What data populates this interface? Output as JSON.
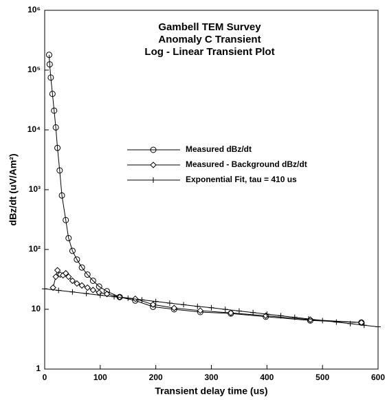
{
  "chart_data": {
    "type": "line",
    "title": [
      "Gambell TEM Survey",
      "Anomaly C Transient",
      "Log - Linear Transient Plot"
    ],
    "x_label": "Transient delay time (us)",
    "y_label": "dBz/dt (uV/Am²)",
    "xlim": [
      0,
      600
    ],
    "xticks": [
      0,
      100,
      200,
      300,
      400,
      500,
      600
    ],
    "ylim": [
      1,
      1000000
    ],
    "yticks": [
      1,
      10,
      {
        "value": 100,
        "label": "10²"
      },
      {
        "value": 1000,
        "label": "10³"
      },
      {
        "value": 10000,
        "label": "10⁴"
      },
      {
        "value": 100000,
        "label": "10⁵"
      },
      {
        "value": 1000000,
        "label": "10⁶"
      }
    ],
    "y_scale": "log",
    "series": [
      {
        "name": "Measured dBz/dt",
        "color": "#000000",
        "marker": "circle",
        "x": [
          8,
          9,
          11,
          14,
          17,
          20,
          23,
          27,
          31,
          38,
          43,
          50,
          58,
          67,
          77,
          87,
          98,
          112,
          135,
          163,
          195,
          233,
          280,
          335,
          398,
          478,
          570
        ],
        "values": [
          180000,
          125000,
          75000,
          40000,
          21000,
          11000,
          5000,
          2100,
          800,
          310,
          155,
          95,
          68,
          50,
          38,
          30,
          24,
          20,
          16,
          14,
          11,
          10,
          9,
          8.5,
          7.5,
          6.5,
          6
        ]
      },
      {
        "name": "Measured - Background dBz/dt",
        "color": "#000000",
        "marker": "diamond",
        "x": [
          15,
          20,
          23,
          28,
          33,
          38,
          43,
          50,
          58,
          67,
          77,
          87,
          98,
          112,
          135,
          163,
          195,
          233,
          280,
          335,
          398,
          478,
          570
        ],
        "values": [
          23,
          35,
          45,
          38,
          37,
          40,
          35,
          30,
          27,
          25,
          23,
          21,
          19,
          18,
          16,
          15,
          12,
          10.5,
          9.5,
          8.7,
          7.8,
          6.7,
          6
        ]
      },
      {
        "name": "Exponential Fit, tau = 410 us",
        "color": "#000000",
        "marker": "plus",
        "x": [
          0,
          25,
          50,
          75,
          100,
          125,
          150,
          175,
          200,
          225,
          250,
          275,
          300,
          325,
          350,
          375,
          400,
          425,
          450,
          475,
          500,
          525,
          550,
          575,
          600
        ],
        "values": [
          22.0,
          20.7,
          19.5,
          18.3,
          17.2,
          16.2,
          15.3,
          14.4,
          13.5,
          12.7,
          11.9,
          11.2,
          10.6,
          9.96,
          9.37,
          8.82,
          8.29,
          7.8,
          7.34,
          6.9,
          6.49,
          6.11,
          5.75,
          5.41,
          5.09
        ]
      }
    ]
  }
}
